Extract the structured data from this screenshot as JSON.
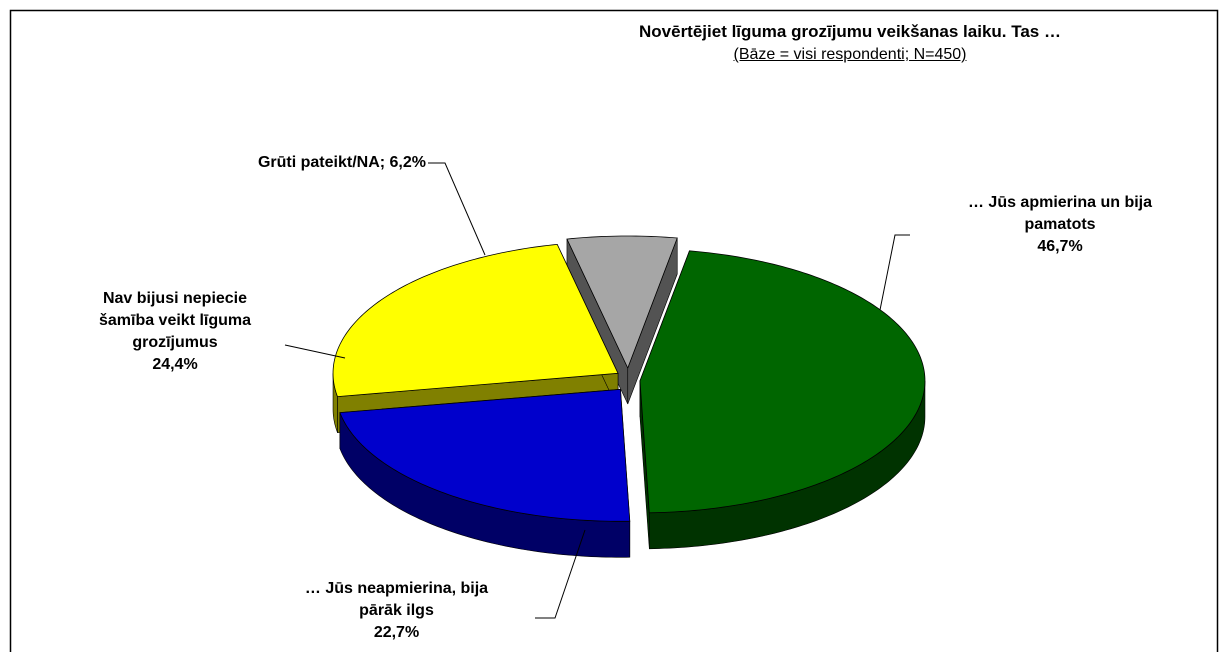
{
  "chart_data": {
    "type": "pie",
    "title": "Novērtējiet līguma grozījumu veikšanas laiku. Tas …",
    "subtitle": "(Bāze = visi respondenti; N=450)",
    "categories": [
      "… Jūs apmierina un bija pamatots",
      "… Jūs neapmierina, bija pārāk ilgs",
      "Nav bijusi nepiecie šamība veikt līguma grozījumus",
      "Grūti pateikt/NA;"
    ],
    "values": [
      46.7,
      22.7,
      24.4,
      6.2
    ],
    "value_labels": [
      "46,7%",
      "22,7%",
      "24,4%",
      "6,2%"
    ],
    "colors": [
      "#006600",
      "#0000cc",
      "#ffff00",
      "#a6a6a6"
    ]
  }
}
